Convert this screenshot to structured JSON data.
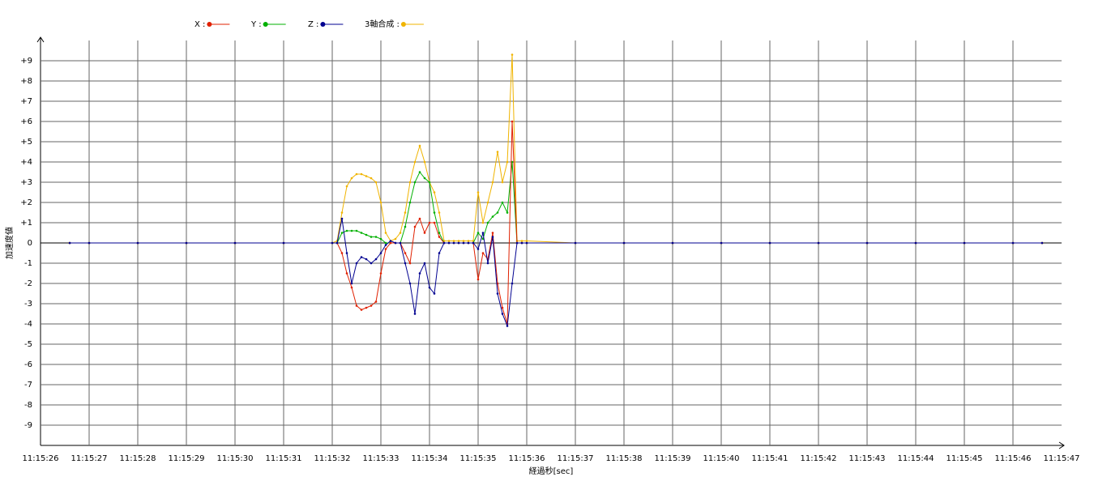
{
  "chart_data": {
    "type": "line",
    "xlabel": "経過秒[sec]",
    "ylabel": "加速度値",
    "x": [
      26.6,
      27,
      28,
      29,
      30,
      31,
      32,
      32.1,
      32.2,
      32.3,
      32.4,
      32.5,
      32.6,
      32.7,
      32.8,
      32.9,
      33.0,
      33.1,
      33.2,
      33.3,
      33.4,
      33.5,
      33.6,
      33.7,
      33.8,
      33.9,
      34.0,
      34.1,
      34.2,
      34.3,
      34.4,
      34.5,
      34.6,
      34.7,
      34.8,
      34.9,
      35.0,
      35.1,
      35.2,
      35.3,
      35.4,
      35.5,
      35.6,
      35.7,
      35.8,
      35.9,
      36.0,
      37,
      38,
      39,
      40,
      41,
      42,
      43,
      44,
      45,
      46,
      46.6
    ],
    "series": [
      {
        "name": "3軸合成 :",
        "color": "#f0b400",
        "values": [
          0,
          0,
          0,
          0,
          0,
          0,
          0,
          0.1,
          1.5,
          2.8,
          3.2,
          3.4,
          3.4,
          3.3,
          3.2,
          3.0,
          2.0,
          0.5,
          0.1,
          0.2,
          0.5,
          1.5,
          3.0,
          4.0,
          4.8,
          4.0,
          3.0,
          2.5,
          1.5,
          0.1,
          0.1,
          0.1,
          0.1,
          0.1,
          0.1,
          0.1,
          2.5,
          1.0,
          2.0,
          3.0,
          4.5,
          3.0,
          4.0,
          9.3,
          0.1,
          0.1,
          0.1,
          0,
          0,
          0,
          0,
          0,
          0,
          0,
          0,
          0,
          0,
          0
        ]
      },
      {
        "name": "Y :",
        "color": "#00b000",
        "values": [
          0,
          0,
          0,
          0,
          0,
          0,
          0,
          0,
          0.5,
          0.6,
          0.6,
          0.6,
          0.5,
          0.4,
          0.3,
          0.3,
          0.2,
          0,
          0,
          0,
          0,
          0.8,
          2.0,
          3.0,
          3.5,
          3.2,
          3.0,
          1.5,
          0.5,
          0,
          0,
          0,
          0,
          0,
          0,
          0,
          0.5,
          0.2,
          1.0,
          1.3,
          1.5,
          2.0,
          1.5,
          4.0,
          0,
          0,
          0,
          0,
          0,
          0,
          0,
          0,
          0,
          0,
          0,
          0,
          0,
          0
        ]
      },
      {
        "name": "X :",
        "color": "#e02000",
        "values": [
          0,
          0,
          0,
          0,
          0,
          0,
          0,
          0,
          -0.5,
          -1.5,
          -2.2,
          -3.1,
          -3.3,
          -3.2,
          -3.1,
          -2.9,
          -1.5,
          -0.3,
          0,
          0,
          0,
          -0.5,
          -1.0,
          0.8,
          1.2,
          0.5,
          1.0,
          1.0,
          0.3,
          0,
          0,
          0,
          0,
          0,
          0,
          0,
          -1.8,
          -0.5,
          -0.8,
          0.5,
          -2.0,
          -3.2,
          -4.0,
          6.0,
          0,
          0,
          0,
          0,
          0,
          0,
          0,
          0,
          0,
          0,
          0,
          0,
          0,
          0
        ]
      },
      {
        "name": "Z :",
        "color": "#000090",
        "values": [
          0,
          0,
          0,
          0,
          0,
          0,
          0,
          0,
          1.2,
          -0.5,
          -2.0,
          -1.0,
          -0.7,
          -0.8,
          -1.0,
          -0.8,
          -0.5,
          -0.1,
          0.1,
          0,
          0,
          -1.0,
          -2.0,
          -3.5,
          -1.5,
          -1.0,
          -2.2,
          -2.5,
          -0.5,
          0,
          0,
          0,
          0,
          0,
          0,
          0,
          -0.3,
          0.5,
          -1.0,
          0.3,
          -2.5,
          -3.5,
          -4.1,
          -2.0,
          0,
          0,
          0,
          0,
          0,
          0,
          0,
          0,
          0,
          0,
          0,
          0,
          0,
          0
        ]
      }
    ],
    "legend_order": [
      2,
      1,
      3,
      0
    ],
    "xlim": [
      26,
      47
    ],
    "ylim": [
      -10,
      10
    ],
    "xticks": [
      {
        "value": 26,
        "label": "11:15:26"
      },
      {
        "value": 27,
        "label": "11:15:27"
      },
      {
        "value": 28,
        "label": "11:15:28"
      },
      {
        "value": 29,
        "label": "11:15:29"
      },
      {
        "value": 30,
        "label": "11:15:30"
      },
      {
        "value": 31,
        "label": "11:15:31"
      },
      {
        "value": 32,
        "label": "11:15:32"
      },
      {
        "value": 33,
        "label": "11:15:33"
      },
      {
        "value": 34,
        "label": "11:15:34"
      },
      {
        "value": 35,
        "label": "11:15:35"
      },
      {
        "value": 36,
        "label": "11:15:36"
      },
      {
        "value": 37,
        "label": "11:15:37"
      },
      {
        "value": 38,
        "label": "11:15:38"
      },
      {
        "value": 39,
        "label": "11:15:39"
      },
      {
        "value": 40,
        "label": "11:15:40"
      },
      {
        "value": 41,
        "label": "11:15:41"
      },
      {
        "value": 42,
        "label": "11:15:42"
      },
      {
        "value": 43,
        "label": "11:15:43"
      },
      {
        "value": 44,
        "label": "11:15:44"
      },
      {
        "value": 45,
        "label": "11:15:45"
      },
      {
        "value": 46,
        "label": "11:15:46"
      },
      {
        "value": 47,
        "label": "11:15:47"
      }
    ],
    "yticks": [
      {
        "value": 9,
        "label": "+9"
      },
      {
        "value": 8,
        "label": "+8"
      },
      {
        "value": 7,
        "label": "+7"
      },
      {
        "value": 6,
        "label": "+6"
      },
      {
        "value": 5,
        "label": "+5"
      },
      {
        "value": 4,
        "label": "+4"
      },
      {
        "value": 3,
        "label": "+3"
      },
      {
        "value": 2,
        "label": "+2"
      },
      {
        "value": 1,
        "label": "+1"
      },
      0,
      -1,
      -2,
      -3,
      -4,
      -5,
      -6,
      -7,
      -8,
      -9
    ],
    "grid": true
  }
}
